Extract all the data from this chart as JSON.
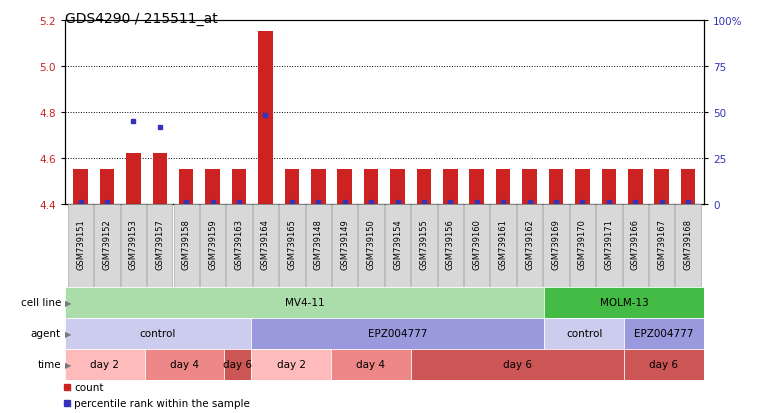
{
  "title": "GDS4290 / 215511_at",
  "samples": [
    "GSM739151",
    "GSM739152",
    "GSM739153",
    "GSM739157",
    "GSM739158",
    "GSM739159",
    "GSM739163",
    "GSM739164",
    "GSM739165",
    "GSM739148",
    "GSM739149",
    "GSM739150",
    "GSM739154",
    "GSM739155",
    "GSM739156",
    "GSM739160",
    "GSM739161",
    "GSM739162",
    "GSM739169",
    "GSM739170",
    "GSM739171",
    "GSM739166",
    "GSM739167",
    "GSM739168"
  ],
  "count_values": [
    4.55,
    4.55,
    4.62,
    4.62,
    4.55,
    4.55,
    4.55,
    5.15,
    4.55,
    4.55,
    4.55,
    4.55,
    4.55,
    4.55,
    4.55,
    4.55,
    4.55,
    4.55,
    4.55,
    4.55,
    4.55,
    4.55,
    4.55,
    4.55
  ],
  "percentile_values": [
    1,
    1,
    45,
    42,
    1,
    1,
    1,
    48,
    1,
    1,
    1,
    1,
    1,
    1,
    1,
    1,
    1,
    1,
    1,
    1,
    1,
    1,
    1,
    1
  ],
  "ylim_left": [
    4.4,
    5.2
  ],
  "ylim_right": [
    0,
    100
  ],
  "yticks_left": [
    4.4,
    4.6,
    4.8,
    5.0,
    5.2
  ],
  "yticks_right": [
    0,
    25,
    50,
    75,
    100
  ],
  "ytick_labels_right": [
    "0",
    "25",
    "50",
    "75",
    "100%"
  ],
  "bar_color": "#cc2222",
  "dot_color": "#3333bb",
  "bar_bottom": 4.4,
  "cell_line_groups": [
    {
      "label": "MV4-11",
      "start": 0,
      "end": 18,
      "color": "#aaddaa"
    },
    {
      "label": "MOLM-13",
      "start": 18,
      "end": 24,
      "color": "#44bb44"
    }
  ],
  "agent_groups": [
    {
      "label": "control",
      "start": 0,
      "end": 7,
      "color": "#ccccee"
    },
    {
      "label": "EPZ004777",
      "start": 7,
      "end": 18,
      "color": "#9999dd"
    },
    {
      "label": "control",
      "start": 18,
      "end": 21,
      "color": "#ccccee"
    },
    {
      "label": "EPZ004777",
      "start": 21,
      "end": 24,
      "color": "#9999dd"
    }
  ],
  "time_groups": [
    {
      "label": "day 2",
      "start": 0,
      "end": 3,
      "color": "#ffbbbb"
    },
    {
      "label": "day 4",
      "start": 3,
      "end": 6,
      "color": "#ee8888"
    },
    {
      "label": "day 6",
      "start": 6,
      "end": 7,
      "color": "#cc5555"
    },
    {
      "label": "day 2",
      "start": 7,
      "end": 10,
      "color": "#ffbbbb"
    },
    {
      "label": "day 4",
      "start": 10,
      "end": 13,
      "color": "#ee8888"
    },
    {
      "label": "day 6",
      "start": 13,
      "end": 21,
      "color": "#cc5555"
    },
    {
      "label": "day 6",
      "start": 21,
      "end": 24,
      "color": "#cc5555"
    }
  ],
  "background_color": "#ffffff",
  "title_fontsize": 10,
  "tick_fontsize": 7.5,
  "annot_fontsize": 7.5,
  "label_fontsize": 6
}
